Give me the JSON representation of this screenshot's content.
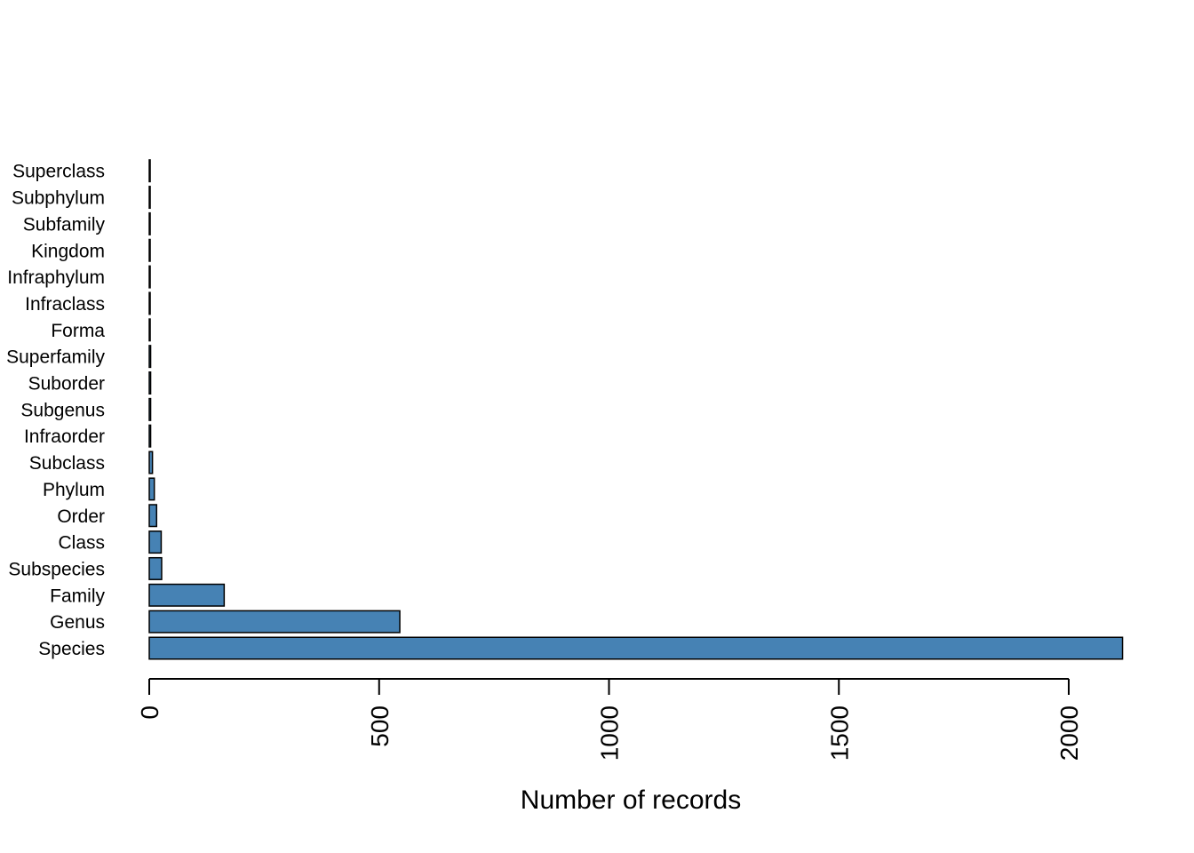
{
  "chart_data": {
    "type": "bar",
    "orientation": "horizontal",
    "categories": [
      "Species",
      "Genus",
      "Family",
      "Subspecies",
      "Class",
      "Order",
      "Phylum",
      "Subclass",
      "Infraorder",
      "Subgenus",
      "Suborder",
      "Superfamily",
      "Forma",
      "Infraclass",
      "Infraphylum",
      "Kingdom",
      "Subfamily",
      "Subphylum",
      "Superclass"
    ],
    "values": [
      2117,
      545,
      163,
      27,
      26,
      16,
      11,
      7,
      3,
      3,
      3,
      3,
      2,
      2,
      2,
      2,
      2,
      2,
      2
    ],
    "xlabel": "Number of records",
    "ylabel": "",
    "xlim": [
      0,
      2117
    ],
    "xticks": [
      0,
      500,
      1000,
      1500,
      2000
    ],
    "xtick_labels": [
      "0",
      "500",
      "1000",
      "1500",
      "2000"
    ],
    "grid": false,
    "bar_color": "#4682b4",
    "bar_border_color": "#000000"
  }
}
